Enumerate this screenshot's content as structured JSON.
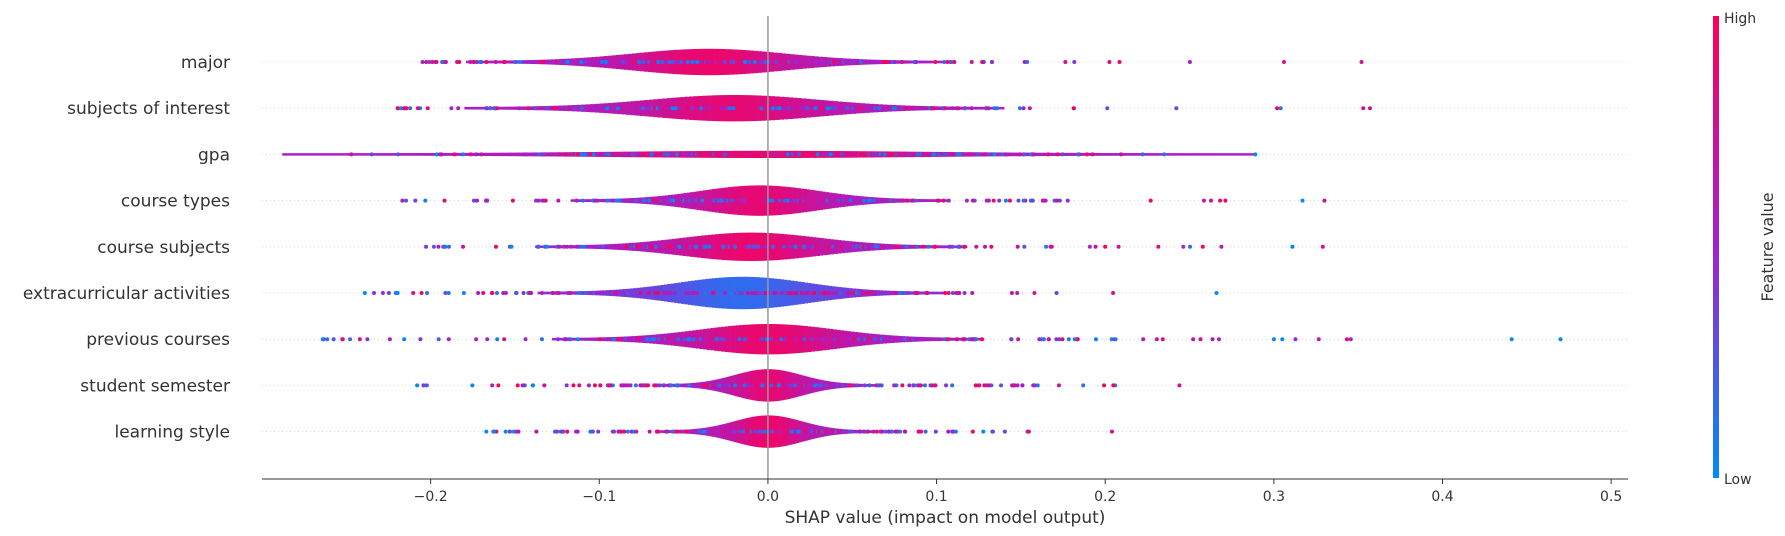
{
  "chart_data": {
    "type": "scatter",
    "subtype": "shap-violin",
    "xlabel": "SHAP value (impact on model output)",
    "xlim": [
      -0.3,
      0.51
    ],
    "xticks": [
      -0.2,
      -0.1,
      0.0,
      0.1,
      0.2,
      0.3,
      0.4,
      0.5
    ],
    "xtick_labels": [
      "−0.2",
      "−0.1",
      "0.0",
      "0.1",
      "0.2",
      "0.3",
      "0.4",
      "0.5"
    ],
    "colorbar": {
      "title": "Feature value",
      "high_label": "High",
      "low_label": "Low",
      "high_color": "#ff0052",
      "low_color": "#008bfb"
    },
    "features": [
      {
        "name": "major",
        "min": -0.21,
        "max": 0.35,
        "center": -0.035,
        "spread": 0.045,
        "violin_width": 0.6,
        "outliers": [
          0.306,
          0.352
        ]
      },
      {
        "name": "subjects of interest",
        "min": -0.22,
        "max": 0.36,
        "center": -0.02,
        "spread": 0.05,
        "violin_width": 0.6,
        "outliers": [
          0.353,
          0.357
        ]
      },
      {
        "name": "gpa",
        "min": -0.247,
        "max": 0.289,
        "center": 0.0,
        "spread": 0.09,
        "violin_width": 0.12,
        "outliers": [
          -0.247,
          0.289
        ]
      },
      {
        "name": "course types",
        "min": -0.217,
        "max": 0.33,
        "center": -0.005,
        "spread": 0.035,
        "violin_width": 0.7,
        "outliers": [
          0.317,
          0.33
        ]
      },
      {
        "name": "course subjects",
        "min": -0.208,
        "max": 0.329,
        "center": -0.01,
        "spread": 0.04,
        "violin_width": 0.65,
        "outliers": [
          0.311,
          0.329
        ]
      },
      {
        "name": "extracurricular activities",
        "min": -0.239,
        "max": 0.266,
        "center": -0.015,
        "spread": 0.038,
        "violin_width": 0.75,
        "outliers": [
          -0.239,
          0.266
        ]
      },
      {
        "name": "previous courses",
        "min": -0.264,
        "max": 0.47,
        "center": 0.0,
        "spread": 0.04,
        "violin_width": 0.7,
        "outliers": [
          -0.264,
          -0.242,
          0.305,
          0.441,
          0.47
        ]
      },
      {
        "name": "student semester",
        "min": -0.208,
        "max": 0.244,
        "center": 0.0,
        "spread": 0.02,
        "violin_width": 0.75,
        "outliers": [
          -0.208,
          0.244
        ]
      },
      {
        "name": "learning style",
        "min": -0.167,
        "max": 0.204,
        "center": 0.0,
        "spread": 0.02,
        "violin_width": 0.75,
        "outliers": [
          -0.167,
          0.204
        ]
      }
    ]
  }
}
